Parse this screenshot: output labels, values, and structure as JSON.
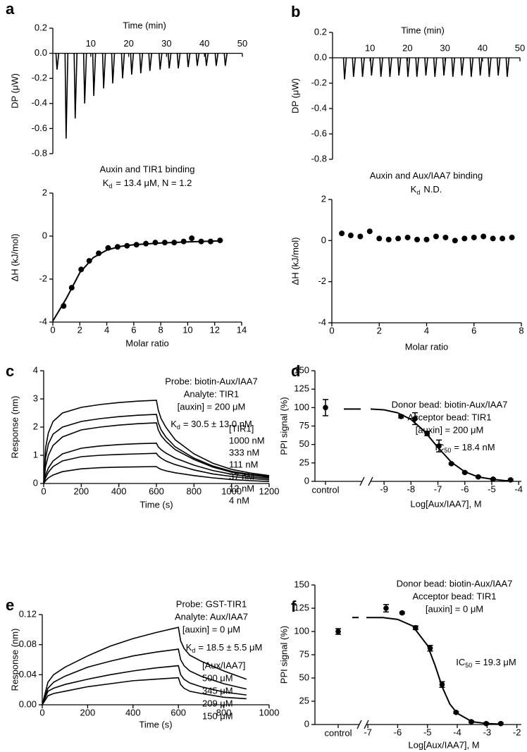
{
  "chart_data": [
    {
      "panel": "a",
      "type": "thermogram",
      "xlabel": "Time (min)",
      "ylabel": "DP (μW)",
      "xlim": [
        0,
        50
      ],
      "xticks": [
        10,
        20,
        30,
        40,
        50
      ],
      "ylim": [
        -0.8,
        0.2
      ],
      "yticks": [
        0.2,
        {
          "value": 0,
          "label": "0.0"
        },
        -0.2,
        -0.4,
        -0.6,
        -0.8
      ],
      "color": "#000000",
      "x": [
        1.1,
        3.5,
        5.9,
        8.4,
        10.8,
        13.4,
        15.8,
        18.4,
        20.8,
        23.2,
        25.6,
        28.3,
        30.7,
        33.1,
        35.7,
        38.1,
        40.5,
        43.1,
        45.5
      ],
      "values": [
        -0.13,
        -0.68,
        -0.52,
        -0.4,
        -0.34,
        -0.28,
        -0.24,
        -0.2,
        -0.17,
        -0.16,
        -0.14,
        -0.13,
        -0.12,
        -0.12,
        -0.11,
        -0.1,
        -0.1,
        -0.1,
        -0.1
      ]
    },
    {
      "panel": "",
      "type": "scatter",
      "title": "Auxin and TIR1 binding",
      "subtitle": {
        "main": "K",
        "sub": "d",
        "tail": "= 13.4 μM, N = 1.2"
      },
      "xlabel": "Molar ratio",
      "ylabel": "ΔH (kJ/mol)",
      "xlim": [
        0,
        14
      ],
      "xticks": [
        0,
        2,
        4,
        6,
        8,
        10,
        12,
        14
      ],
      "ylim": [
        -4,
        2
      ],
      "yticks": [
        -4,
        -2,
        0,
        2
      ],
      "color": "#000000",
      "series": [
        {
          "x": [
            0.8,
            1.4,
            2.1,
            2.7,
            3.4,
            4.1,
            4.8,
            5.5,
            6.2,
            6.9,
            7.6,
            8.3,
            9.0,
            9.7,
            10.3,
            11.0,
            11.7,
            12.4
          ],
          "values": [
            -3.25,
            -2.4,
            -1.55,
            -1.15,
            -0.8,
            -0.55,
            -0.5,
            -0.45,
            -0.4,
            -0.35,
            -0.3,
            -0.3,
            -0.3,
            -0.25,
            -0.1,
            -0.25,
            -0.25,
            -0.2
          ]
        }
      ],
      "fit": {
        "x": [
          0,
          1,
          2,
          3,
          4,
          5,
          6,
          8,
          10,
          12.5
        ],
        "values": [
          -3.95,
          -2.9,
          -1.7,
          -1.0,
          -0.65,
          -0.48,
          -0.4,
          -0.32,
          -0.27,
          -0.22
        ]
      }
    },
    {
      "panel": "b",
      "type": "thermogram",
      "xlabel": "Time (min)",
      "ylabel": "DP (μW)",
      "xlim": [
        0,
        50
      ],
      "xticks": [
        10,
        20,
        30,
        40,
        50
      ],
      "ylim": [
        -0.8,
        0.2
      ],
      "yticks": [
        0.2,
        {
          "value": 0,
          "label": "0.0"
        },
        -0.2,
        -0.4,
        -0.6,
        -0.8
      ],
      "color": "#000000",
      "x": [
        3.2,
        5.6,
        8.0,
        10.4,
        12.9,
        15.3,
        17.7,
        20.1,
        22.5,
        24.9,
        27.3,
        29.7,
        32.1,
        34.5,
        37.0,
        39.4,
        41.8,
        44.2,
        46.6
      ],
      "values": [
        -0.17,
        -0.15,
        -0.15,
        -0.14,
        -0.15,
        -0.15,
        -0.14,
        -0.15,
        -0.15,
        -0.14,
        -0.15,
        -0.14,
        -0.15,
        -0.14,
        -0.15,
        -0.14,
        -0.15,
        -0.14,
        -0.15
      ]
    },
    {
      "panel": "",
      "type": "scatter",
      "title": "Auxin and Aux/IAA7 binding",
      "subtitle": {
        "main": "K",
        "sub": "d",
        "tail": "N.D."
      },
      "xlabel": "Molar ratio",
      "ylabel": "ΔH (kJ/mol)",
      "xlim": [
        0,
        8
      ],
      "xticks": [
        0,
        2,
        4,
        6,
        8
      ],
      "ylim": [
        -4,
        2
      ],
      "yticks": [
        -4,
        -2,
        0,
        2
      ],
      "color": "#000000",
      "series": [
        {
          "x": [
            0.42,
            0.8,
            1.2,
            1.6,
            2.0,
            2.4,
            2.8,
            3.2,
            3.6,
            4.0,
            4.4,
            4.8,
            5.2,
            5.6,
            6.0,
            6.4,
            6.8,
            7.2,
            7.6
          ],
          "values": [
            0.35,
            0.25,
            0.2,
            0.45,
            0.1,
            0.05,
            0.1,
            0.15,
            0.05,
            0.05,
            0.2,
            0.15,
            0.0,
            0.1,
            0.15,
            0.2,
            0.1,
            0.1,
            0.15
          ]
        }
      ]
    },
    {
      "panel": "c",
      "type": "line",
      "xlabel": "Time (s)",
      "ylabel": "Response (nm)",
      "xlim": [
        0,
        1200
      ],
      "xticks": [
        0,
        200,
        400,
        600,
        800,
        1000,
        1200
      ],
      "ylim": [
        0,
        4
      ],
      "yticks": [
        0,
        1,
        2,
        3,
        4
      ],
      "color": "#000000",
      "annotations": [
        "Probe: biotin-Aux/IAA7",
        "Analyte: TIR1",
        "[auxin] = 200 μM"
      ],
      "kd": {
        "main": "K",
        "sub": "d",
        "tail": "= 30.5 ± 13.0 nM"
      },
      "legend_title": "[TIR1]",
      "x": [
        0,
        10,
        25,
        50,
        100,
        200,
        300,
        400,
        500,
        600,
        610,
        625,
        650,
        700,
        800,
        900,
        1000,
        1100,
        1200
      ],
      "series": [
        {
          "name": "1000 nM",
          "values": [
            0,
            1.25,
            1.8,
            2.2,
            2.5,
            2.7,
            2.8,
            2.87,
            2.92,
            2.95,
            2.6,
            2.3,
            2.0,
            1.55,
            1.05,
            0.72,
            0.5,
            0.37,
            0.28
          ]
        },
        {
          "name": "333 nM",
          "values": [
            0,
            0.9,
            1.4,
            1.75,
            2.0,
            2.2,
            2.3,
            2.37,
            2.42,
            2.45,
            2.15,
            1.9,
            1.65,
            1.3,
            0.9,
            0.62,
            0.43,
            0.32,
            0.25
          ]
        },
        {
          "name": "111 nM",
          "values": [
            0,
            0.6,
            1.0,
            1.35,
            1.65,
            1.9,
            2.0,
            2.07,
            2.12,
            2.15,
            1.9,
            1.7,
            1.5,
            1.2,
            0.85,
            0.58,
            0.4,
            0.3,
            0.22
          ]
        },
        {
          "name": "37 nM",
          "values": [
            0,
            0.3,
            0.55,
            0.8,
            1.05,
            1.25,
            1.33,
            1.38,
            1.41,
            1.43,
            1.3,
            1.2,
            1.08,
            0.9,
            0.65,
            0.46,
            0.33,
            0.24,
            0.18
          ]
        },
        {
          "name": "12 nM",
          "values": [
            0,
            0.2,
            0.4,
            0.6,
            0.8,
            0.95,
            1.0,
            1.03,
            1.05,
            1.07,
            0.98,
            0.9,
            0.8,
            0.67,
            0.48,
            0.34,
            0.25,
            0.18,
            0.13
          ]
        },
        {
          "name": "4 nM",
          "values": [
            0,
            0.1,
            0.2,
            0.3,
            0.42,
            0.52,
            0.56,
            0.58,
            0.59,
            0.6,
            0.55,
            0.5,
            0.45,
            0.38,
            0.28,
            0.2,
            0.14,
            0.1,
            0.07
          ]
        }
      ]
    },
    {
      "panel": "d",
      "type": "dose",
      "xlabel": "Log[Aux/IAA7], M",
      "ylabel": "PPI signal (%)",
      "xlim": [
        -9.5,
        -3.9
      ],
      "xticks": [
        -9,
        -8,
        -7,
        -6,
        -5,
        -4
      ],
      "ylim": [
        0,
        150
      ],
      "yticks": [
        0,
        25,
        50,
        75,
        100,
        125,
        150
      ],
      "color": "#000000",
      "annotations": [
        "Donor bead: biotin-Aux/IAA7",
        "Acceptor bead: TIR1",
        "[auxin] = 200 μM"
      ],
      "ic50": {
        "main": "IC",
        "sub": "50",
        "tail": "= 18.4 nM"
      },
      "categories": [
        "control"
      ],
      "control_values": [
        100
      ],
      "control_errors": [
        11
      ],
      "x": [
        -8.37,
        -7.85,
        -7.4,
        -6.96,
        -6.5,
        -6.0,
        -5.5,
        -4.95,
        -4.3
      ],
      "values": [
        88,
        85,
        65,
        48,
        24,
        12,
        6,
        3,
        2
      ],
      "errors": [
        2,
        8,
        3,
        8,
        1,
        1,
        1,
        1,
        1
      ],
      "fit": {
        "x": [
          -9.5,
          -9,
          -8.5,
          -8,
          -7.5,
          -7,
          -6.5,
          -6,
          -5.5,
          -5,
          -4.5,
          -4.2
        ],
        "values": [
          98,
          97,
          93,
          84,
          68,
          46,
          26,
          13,
          6,
          3,
          1,
          1
        ]
      }
    },
    {
      "panel": "e",
      "type": "line",
      "xlabel": "Time (s)",
      "ylabel": "Response (nm)",
      "xlim": [
        0,
        1000
      ],
      "xticks": [
        0,
        200,
        400,
        600,
        800,
        1000
      ],
      "ylim": [
        0,
        0.12
      ],
      "yticks": [
        {
          "value": 0,
          "label": "0.00"
        },
        0.04,
        0.08,
        0.12
      ],
      "color": "#000000",
      "annotations": [
        "Probe: GST-TIR1",
        "Analyte: Aux/IAA7",
        "[auxin] = 0 μM"
      ],
      "kd": {
        "main": "K",
        "sub": "d",
        "tail": "= 18.5 ± 5.5 μM"
      },
      "legend_title": "[Aux/IAA7]",
      "x": [
        0,
        25,
        50,
        100,
        200,
        300,
        400,
        500,
        600,
        610,
        625,
        650,
        700,
        800,
        900
      ],
      "series": [
        {
          "name": "500 μM",
          "values": [
            0,
            0.03,
            0.04,
            0.05,
            0.065,
            0.078,
            0.088,
            0.096,
            0.103,
            0.085,
            0.075,
            0.066,
            0.058,
            0.045,
            0.034
          ]
        },
        {
          "name": "345 μM",
          "values": [
            0,
            0.022,
            0.03,
            0.038,
            0.05,
            0.058,
            0.065,
            0.07,
            0.074,
            0.06,
            0.052,
            0.045,
            0.038,
            0.028,
            0.021
          ]
        },
        {
          "name": "209 μM",
          "values": [
            0,
            0.018,
            0.022,
            0.027,
            0.034,
            0.04,
            0.045,
            0.049,
            0.052,
            0.04,
            0.034,
            0.029,
            0.024,
            0.017,
            0.013
          ]
        },
        {
          "name": "150 μM",
          "values": [
            0,
            0.012,
            0.015,
            0.018,
            0.024,
            0.028,
            0.032,
            0.034,
            0.036,
            0.027,
            0.022,
            0.018,
            0.015,
            0.01,
            0.008
          ]
        }
      ]
    },
    {
      "panel": "f",
      "type": "dose",
      "xlabel": "Log[Aux/IAA7], M",
      "ylabel": "PPI signal (%)",
      "xlim": [
        -7.05,
        -1.85
      ],
      "xticks": [
        -7,
        -6,
        -5,
        -4,
        -3,
        -2
      ],
      "ylim": [
        0,
        150
      ],
      "yticks": [
        0,
        25,
        50,
        75,
        100,
        125,
        150
      ],
      "color": "#000000",
      "annotations": [
        "Donor bead: biotin-Aux/IAA7",
        "Acceptor bead: TIR1",
        "[auxin] = 0 μM"
      ],
      "ic50": {
        "main": "IC",
        "sub": "50",
        "tail": "= 19.3 μM"
      },
      "categories": [
        "control"
      ],
      "control_values": [
        100
      ],
      "control_errors": [
        3
      ],
      "x": [
        -6.39,
        -5.85,
        -5.4,
        -4.91,
        -4.51,
        -4.04,
        -3.53,
        -3.03,
        -2.54
      ],
      "values": [
        125,
        120,
        104,
        82,
        43,
        13,
        3,
        1,
        1
      ],
      "errors": [
        4,
        1,
        2,
        3,
        3,
        1,
        1,
        1,
        1
      ],
      "fit": {
        "x": [
          -7.05,
          -6.5,
          -6,
          -5.5,
          -5,
          -4.75,
          -4.5,
          -4.25,
          -4,
          -3.5,
          -3,
          -2.6
        ],
        "values": [
          115,
          115,
          113,
          106,
          85,
          64,
          40,
          22,
          12,
          3,
          1,
          0.5
        ]
      }
    }
  ]
}
